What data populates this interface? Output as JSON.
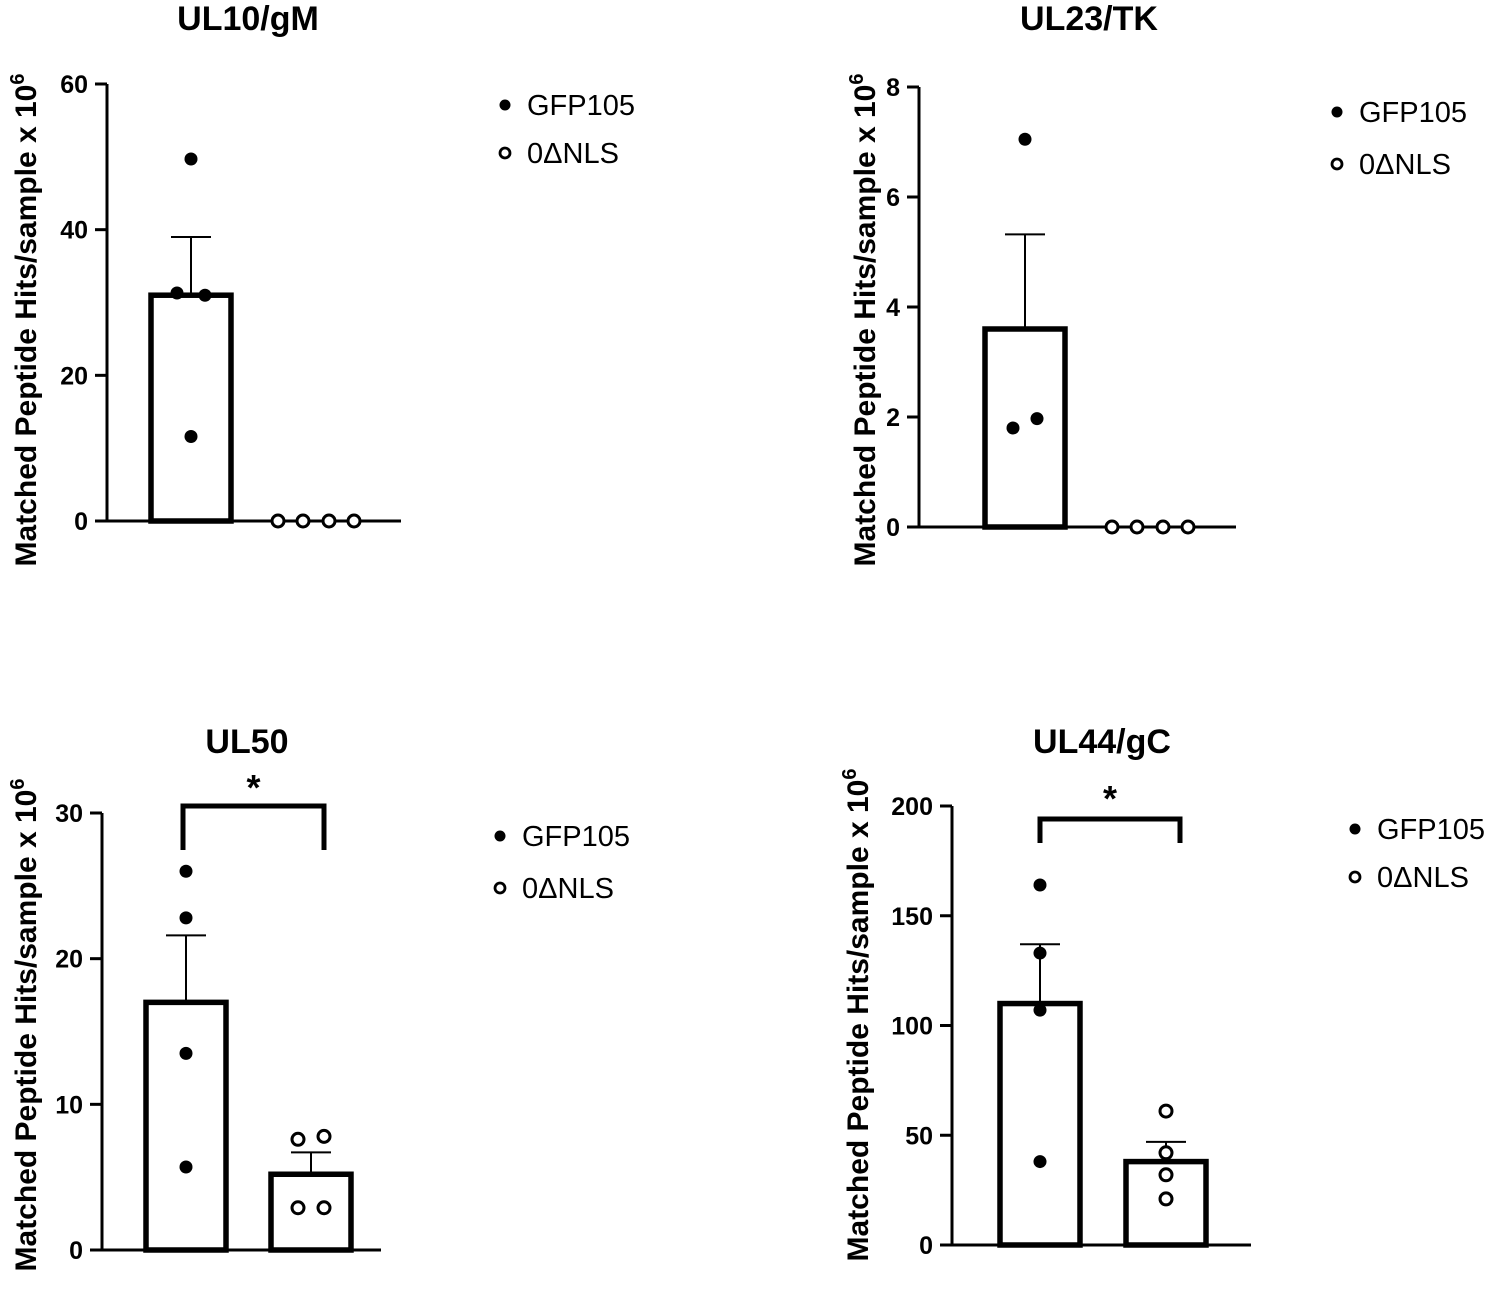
{
  "colors": {
    "ink": "#000000",
    "background": "#ffffff"
  },
  "chart_data": [
    {
      "type": "bar",
      "title": "UL10/gM",
      "ylabel": "Matched Peptide Hits/sample x 10",
      "ylabel_exponent": "6",
      "ylim": [
        0,
        60
      ],
      "yticks": [
        0,
        20,
        40,
        60
      ],
      "groups": [
        {
          "name": "GFP105",
          "marker": "filled",
          "mean": 31,
          "sem": 8,
          "points": [
            49.7,
            31.3,
            31.0,
            11.6
          ]
        },
        {
          "name": "0ΔNLS",
          "marker": "open",
          "mean": 0,
          "sem": 0,
          "points": [
            0,
            0,
            0,
            0
          ]
        }
      ],
      "legend": [
        "GFP105",
        "0ΔNLS"
      ],
      "significance": null
    },
    {
      "type": "bar",
      "title": "UL23/TK",
      "ylabel": "Matched Peptide Hits/sample x 10",
      "ylabel_exponent": "6",
      "ylim": [
        0,
        8
      ],
      "yticks": [
        0,
        2,
        4,
        6,
        8
      ],
      "groups": [
        {
          "name": "GFP105",
          "marker": "filled",
          "mean": 3.6,
          "sem": 1.72,
          "points": [
            7.05,
            1.97,
            1.8
          ]
        },
        {
          "name": "0ΔNLS",
          "marker": "open",
          "mean": 0,
          "sem": 0,
          "points": [
            0,
            0,
            0,
            0
          ]
        }
      ],
      "legend": [
        "GFP105",
        "0ΔNLS"
      ],
      "significance": null
    },
    {
      "type": "bar",
      "title": "UL50",
      "ylabel": "Matched Peptide Hits/sample x 10",
      "ylabel_exponent": "6",
      "ylim": [
        0,
        30
      ],
      "yticks": [
        0,
        10,
        20,
        30
      ],
      "groups": [
        {
          "name": "GFP105",
          "marker": "filled",
          "mean": 17,
          "sem": 4.6,
          "points": [
            26,
            22.8,
            13.5,
            5.7
          ]
        },
        {
          "name": "0ΔNLS",
          "marker": "open",
          "mean": 5.2,
          "sem": 1.5,
          "points": [
            7.6,
            7.8,
            2.9,
            2.9
          ]
        }
      ],
      "legend": [
        "GFP105",
        "0ΔNLS"
      ],
      "significance": "*"
    },
    {
      "type": "bar",
      "title": "UL44/gC",
      "ylabel": "Matched Peptide Hits/sample x 10",
      "ylabel_exponent": "6",
      "ylim": [
        0,
        200
      ],
      "yticks": [
        0,
        50,
        100,
        150,
        200
      ],
      "groups": [
        {
          "name": "GFP105",
          "marker": "filled",
          "mean": 110,
          "sem": 27,
          "points": [
            164,
            133,
            107,
            38
          ]
        },
        {
          "name": "0ΔNLS",
          "marker": "open",
          "mean": 38,
          "sem": 9,
          "points": [
            61,
            42,
            32,
            21
          ]
        }
      ],
      "legend": [
        "GFP105",
        "0ΔNLS"
      ],
      "significance": "*"
    }
  ]
}
